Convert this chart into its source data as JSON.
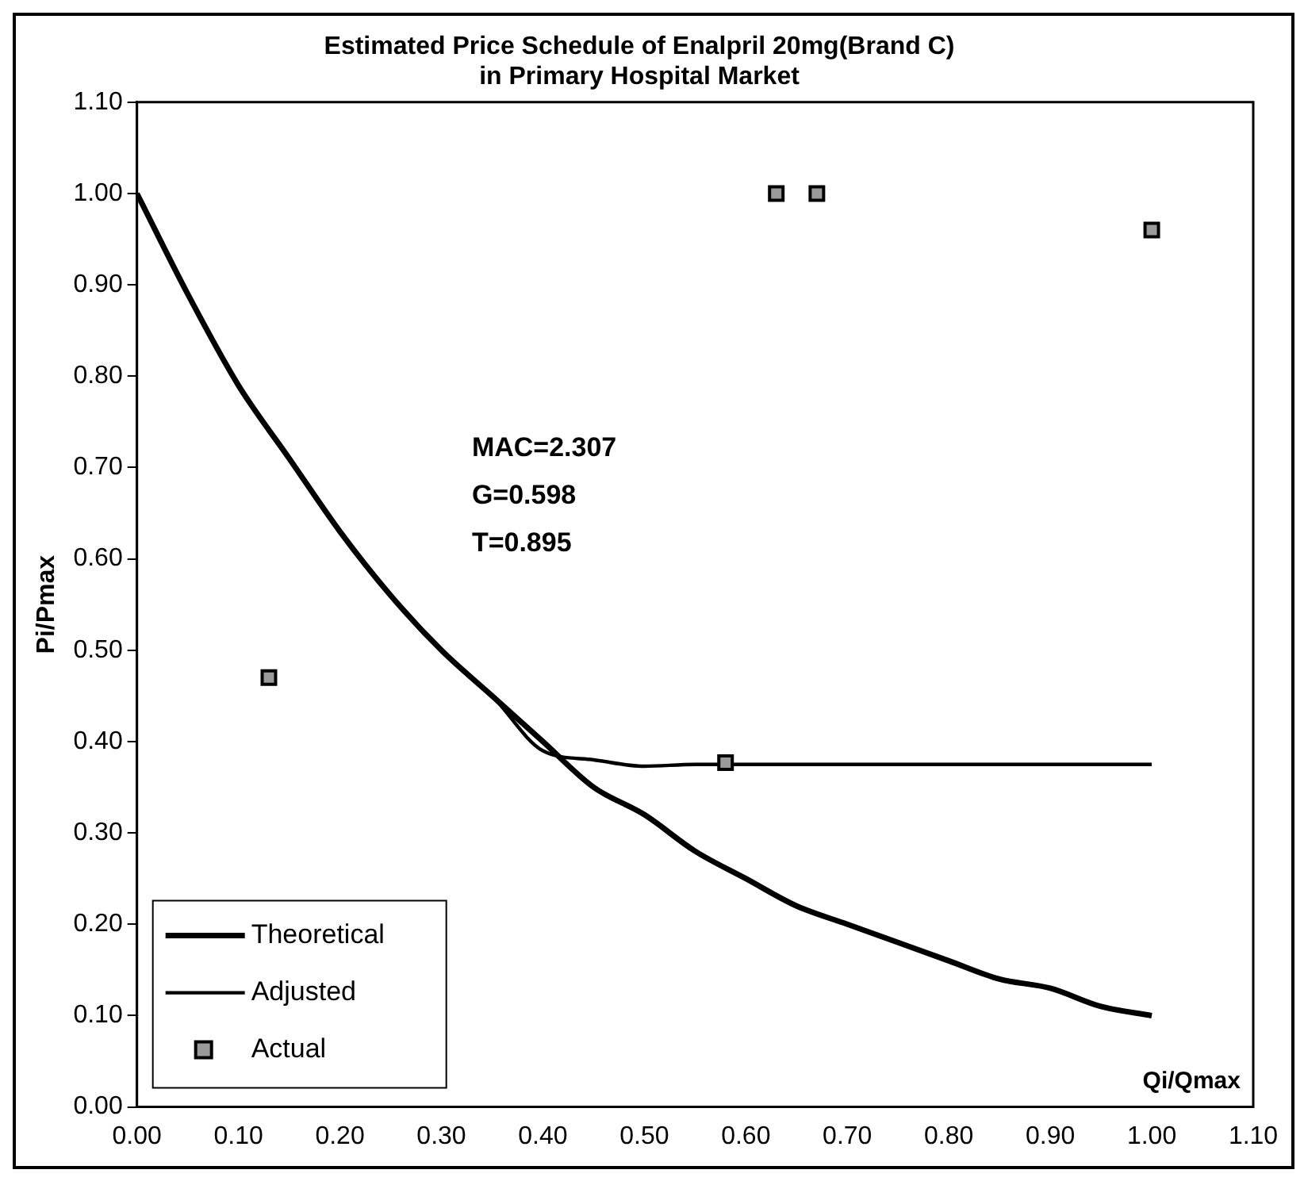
{
  "chart_data": {
    "type": "line",
    "title": "Estimated Price Schedule of Enalpril 20mg(Brand C)\nin Primary Hospital Market",
    "xlabel": "Qi/Qmax",
    "ylabel": "Pi/Pmax",
    "annotations": [
      "MAC=2.307",
      "G=0.598",
      "T=0.895"
    ],
    "series": [
      {
        "name": "Theoretical",
        "color": "#000000",
        "marker": "none",
        "x": [
          0,
          0.05,
          0.1,
          0.15,
          0.2,
          0.25,
          0.3,
          0.35,
          0.4,
          0.45,
          0.5,
          0.55,
          0.6,
          0.65,
          0.7,
          0.75,
          0.8,
          0.85,
          0.9,
          0.95,
          1.0
        ],
        "values": [
          1.0,
          0.89,
          0.79,
          0.71,
          0.63,
          0.56,
          0.5,
          0.45,
          0.4,
          0.35,
          0.32,
          0.28,
          0.25,
          0.22,
          0.2,
          0.18,
          0.16,
          0.14,
          0.13,
          0.11,
          0.1
        ]
      },
      {
        "name": "Adjusted",
        "color": "#000000",
        "marker": "none",
        "x": [
          0,
          0.05,
          0.1,
          0.15,
          0.2,
          0.25,
          0.3,
          0.35,
          0.4,
          0.45,
          0.5,
          0.55,
          0.6,
          0.7,
          0.8,
          0.9,
          1.0
        ],
        "values": [
          1.0,
          0.89,
          0.79,
          0.71,
          0.63,
          0.56,
          0.5,
          0.45,
          0.39,
          0.38,
          0.373,
          0.375,
          0.375,
          0.375,
          0.375,
          0.375,
          0.375
        ]
      },
      {
        "name": "Actual",
        "type": "scatter",
        "color": "#9a9a9a",
        "marker": "square",
        "x": [
          0.13,
          0.58,
          0.63,
          0.67,
          1.0
        ],
        "values": [
          0.47,
          0.377,
          1.0,
          1.0,
          0.96
        ]
      }
    ],
    "xlim": [
      0,
      1.1
    ],
    "ylim": [
      0,
      1.1
    ],
    "xticks": [
      {
        "value": 0,
        "label": "0.00"
      },
      {
        "value": 0.1,
        "label": "0.10"
      },
      {
        "value": 0.2,
        "label": "0.20"
      },
      {
        "value": 0.3,
        "label": "0.30"
      },
      {
        "value": 0.4,
        "label": "0.40"
      },
      {
        "value": 0.5,
        "label": "0.50"
      },
      {
        "value": 0.6,
        "label": "0.60"
      },
      {
        "value": 0.7,
        "label": "0.70"
      },
      {
        "value": 0.8,
        "label": "0.80"
      },
      {
        "value": 0.9,
        "label": "0.90"
      },
      {
        "value": 1.0,
        "label": "1.00"
      },
      {
        "value": 1.1,
        "label": "1.10"
      }
    ],
    "yticks": [
      {
        "value": 0,
        "label": "0.00"
      },
      {
        "value": 0.1,
        "label": "0.10"
      },
      {
        "value": 0.2,
        "label": "0.20"
      },
      {
        "value": 0.3,
        "label": "0.30"
      },
      {
        "value": 0.4,
        "label": "0.40"
      },
      {
        "value": 0.5,
        "label": "0.50"
      },
      {
        "value": 0.6,
        "label": "0.60"
      },
      {
        "value": 0.7,
        "label": "0.70"
      },
      {
        "value": 0.8,
        "label": "0.80"
      },
      {
        "value": 0.9,
        "label": "0.90"
      },
      {
        "value": 1.0,
        "label": "1.00"
      },
      {
        "value": 1.1,
        "label": "1.10"
      }
    ],
    "grid": false,
    "legend": "bottom left"
  }
}
